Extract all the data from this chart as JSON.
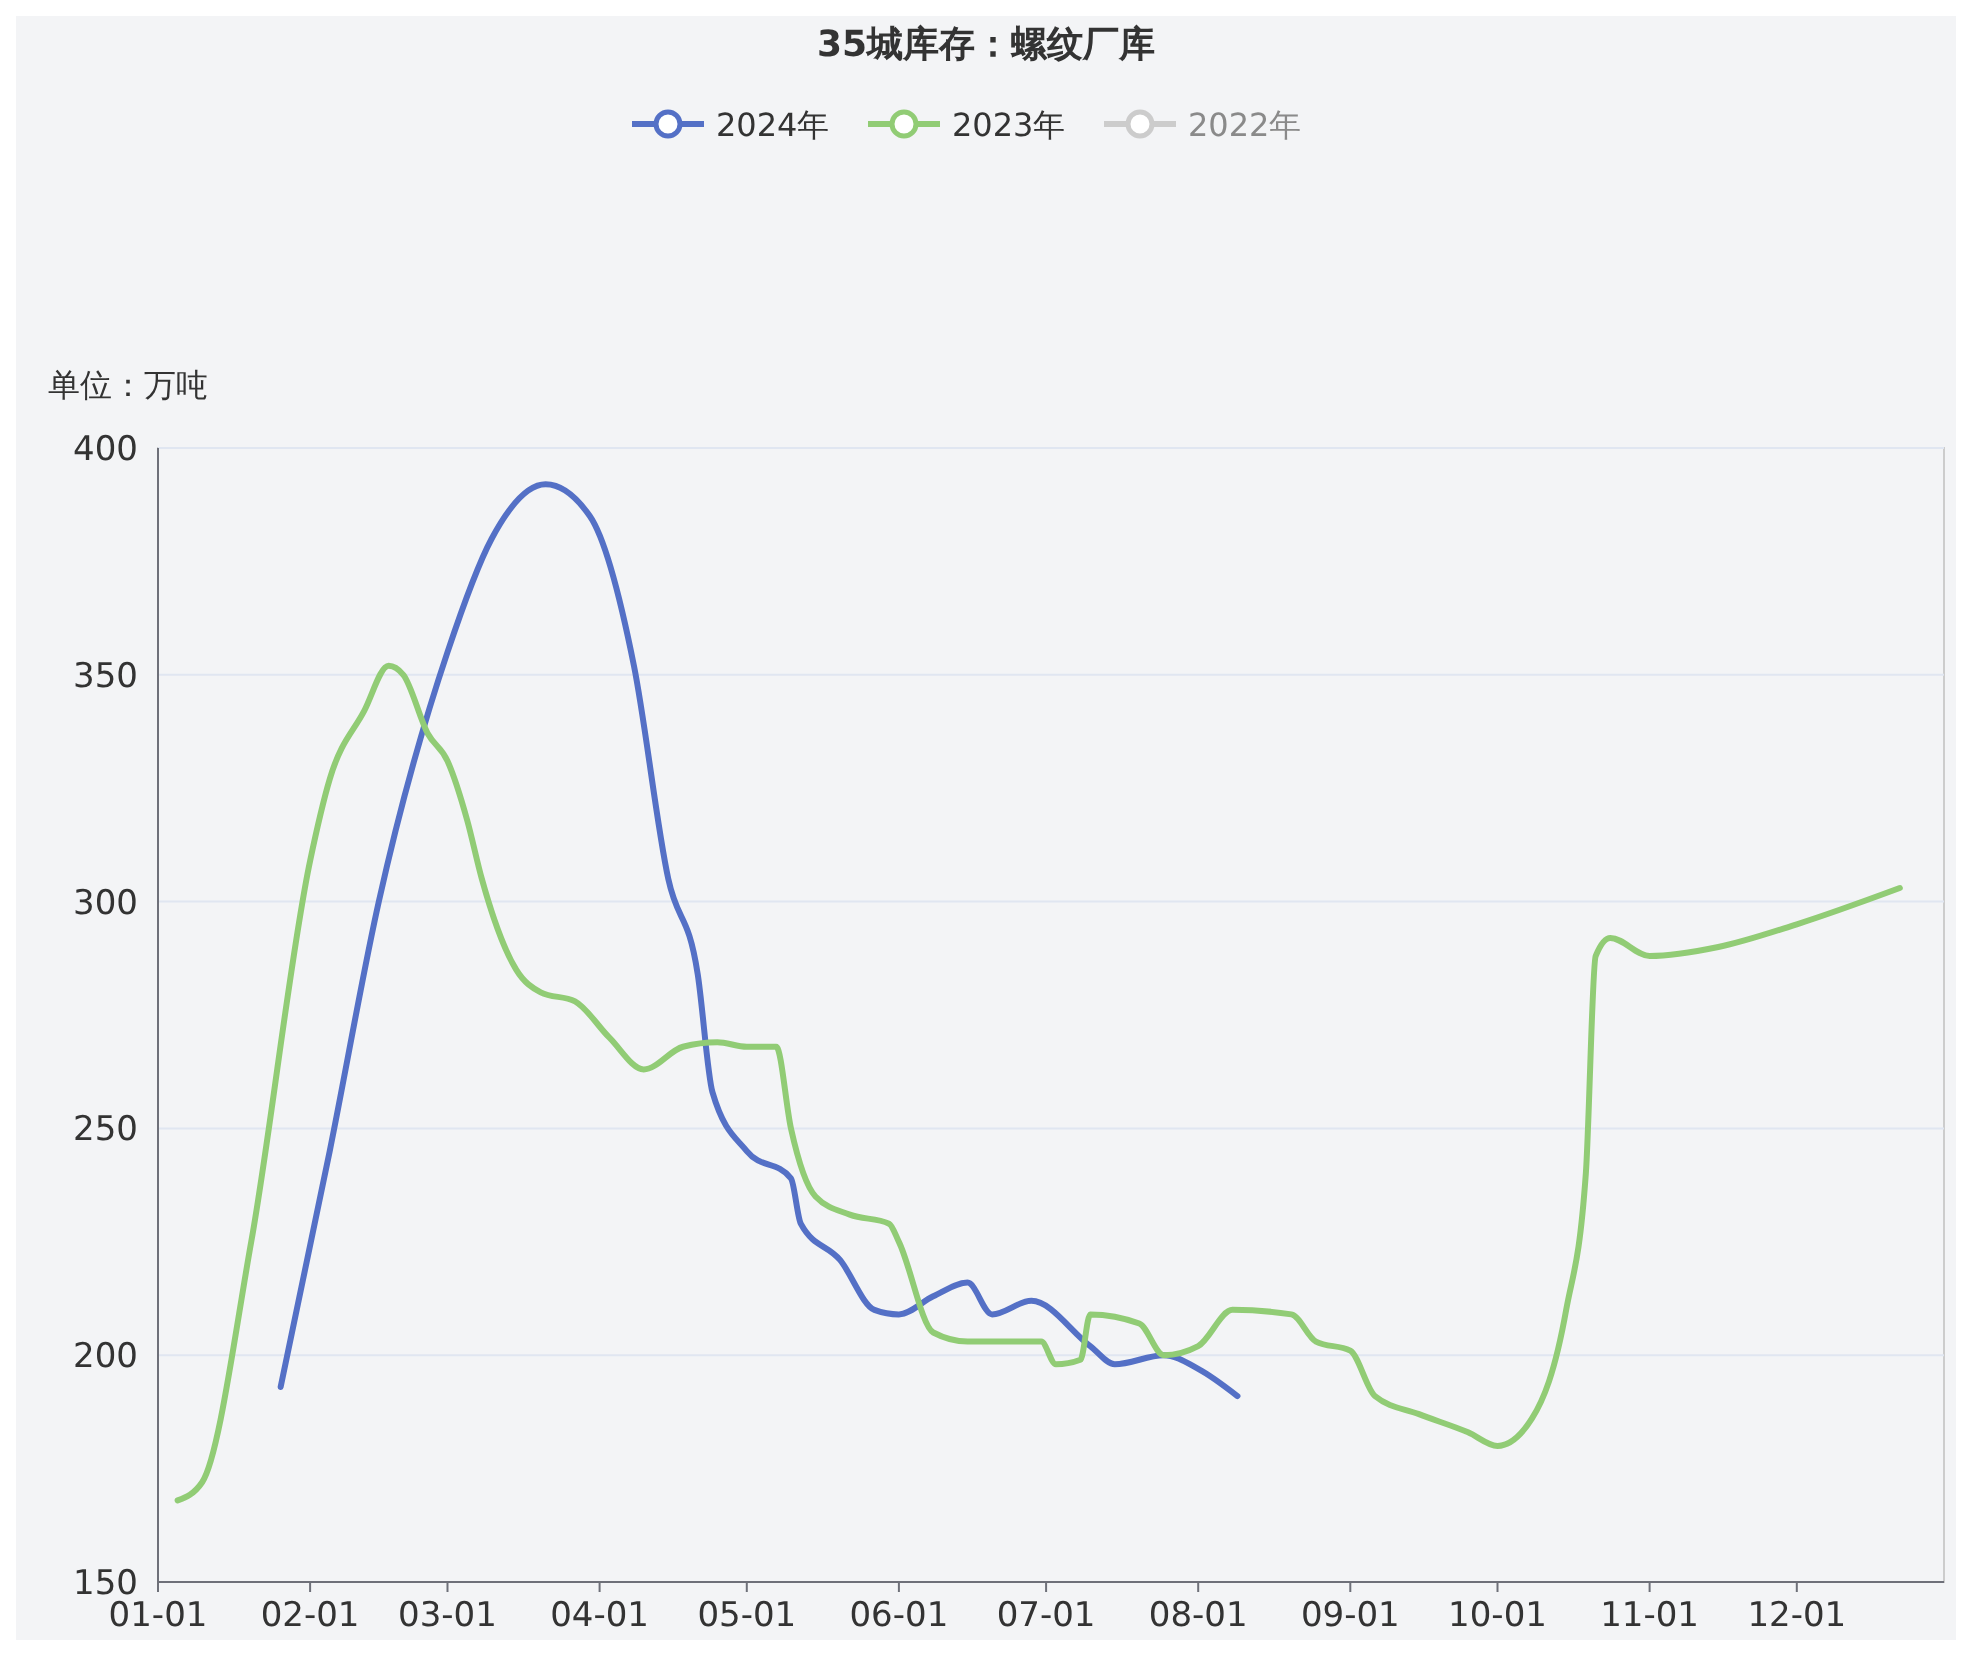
{
  "chart_data": {
    "type": "line",
    "title": "35城库存：螺纹厂库",
    "ylabel": "单位：万吨",
    "xlim": [
      "--01-01",
      "--12-31"
    ],
    "xticks": [
      {
        "value": "--01-01",
        "label": "01-01"
      },
      {
        "value": "--02-01",
        "label": "02-01"
      },
      {
        "value": "--03-01",
        "label": "03-01"
      },
      {
        "value": "--04-01",
        "label": "04-01"
      },
      {
        "value": "--05-01",
        "label": "05-01"
      },
      {
        "value": "--06-01",
        "label": "06-01"
      },
      {
        "value": "--07-01",
        "label": "07-01"
      },
      {
        "value": "--08-01",
        "label": "08-01"
      },
      {
        "value": "--09-01",
        "label": "09-01"
      },
      {
        "value": "--10-01",
        "label": "10-01"
      },
      {
        "value": "--11-01",
        "label": "11-01"
      },
      {
        "value": "--12-01",
        "label": "12-01"
      }
    ],
    "ylim": [
      150,
      400
    ],
    "yticks": [
      150,
      200,
      250,
      300,
      350,
      400
    ],
    "grid": "y",
    "legend": "top",
    "marker": "none",
    "line_style": "solid",
    "series": [
      {
        "name": "2024年",
        "color": "#5470c6",
        "x": [
          "--01-26",
          "--02-05",
          "--02-15",
          "--03-01",
          "--03-10",
          "--03-21",
          "--03-30",
          "--04-08",
          "--04-15",
          "--04-21",
          "--04-24",
          "--05-01",
          "--05-10",
          "--05-12",
          "--05-20",
          "--05-27",
          "--06-01",
          "--06-08",
          "--06-15",
          "--06-20",
          "--06-28",
          "--07-10",
          "--07-15",
          "--07-25",
          "--08-01",
          "--08-09"
        ],
        "values": [
          193,
          245,
          300,
          355,
          380,
          392,
          385,
          352,
          305,
          284,
          258,
          245,
          239,
          229,
          221,
          210,
          209,
          213,
          216,
          209,
          212,
          202,
          198,
          200,
          197,
          191
        ]
      },
      {
        "name": "2023年",
        "color": "#91cc75",
        "x": [
          "--01-05",
          "--01-10",
          "--01-20",
          "--02-01",
          "--02-05",
          "--02-12",
          "--02-17",
          "--02-20",
          "--02-25",
          "--03-01",
          "--03-05",
          "--03-08",
          "--03-15",
          "--03-20",
          "--03-27",
          "--04-03",
          "--04-10",
          "--04-18",
          "--04-25",
          "--05-01",
          "--05-07",
          "--05-10",
          "--05-15",
          "--05-22",
          "--05-30",
          "--06-01",
          "--06-08",
          "--06-15",
          "--06-30",
          "--07-03",
          "--07-08",
          "--07-10",
          "--07-20",
          "--07-25",
          "--08-01",
          "--08-08",
          "--08-20",
          "--08-25",
          "--09-01",
          "--09-06",
          "--09-15",
          "--09-25",
          "--10-01",
          "--10-08",
          "--10-15",
          "--10-19",
          "--10-21",
          "--10-24",
          "--11-01",
          "--11-15",
          "--12-01",
          "--12-22"
        ],
        "values": [
          168,
          172,
          225,
          309,
          327,
          342,
          352,
          350,
          337,
          331,
          318,
          305,
          285,
          280,
          278,
          270,
          263,
          268,
          269,
          268,
          268,
          250,
          235,
          231,
          229,
          225,
          205,
          203,
          203,
          198,
          199,
          209,
          207,
          200,
          202,
          210,
          209,
          203,
          201,
          191,
          187,
          183,
          180,
          186,
          210,
          240,
          288,
          292,
          288,
          290,
          295,
          303
        ]
      },
      {
        "name": "2022年",
        "color": "#cccccc"
      }
    ]
  }
}
